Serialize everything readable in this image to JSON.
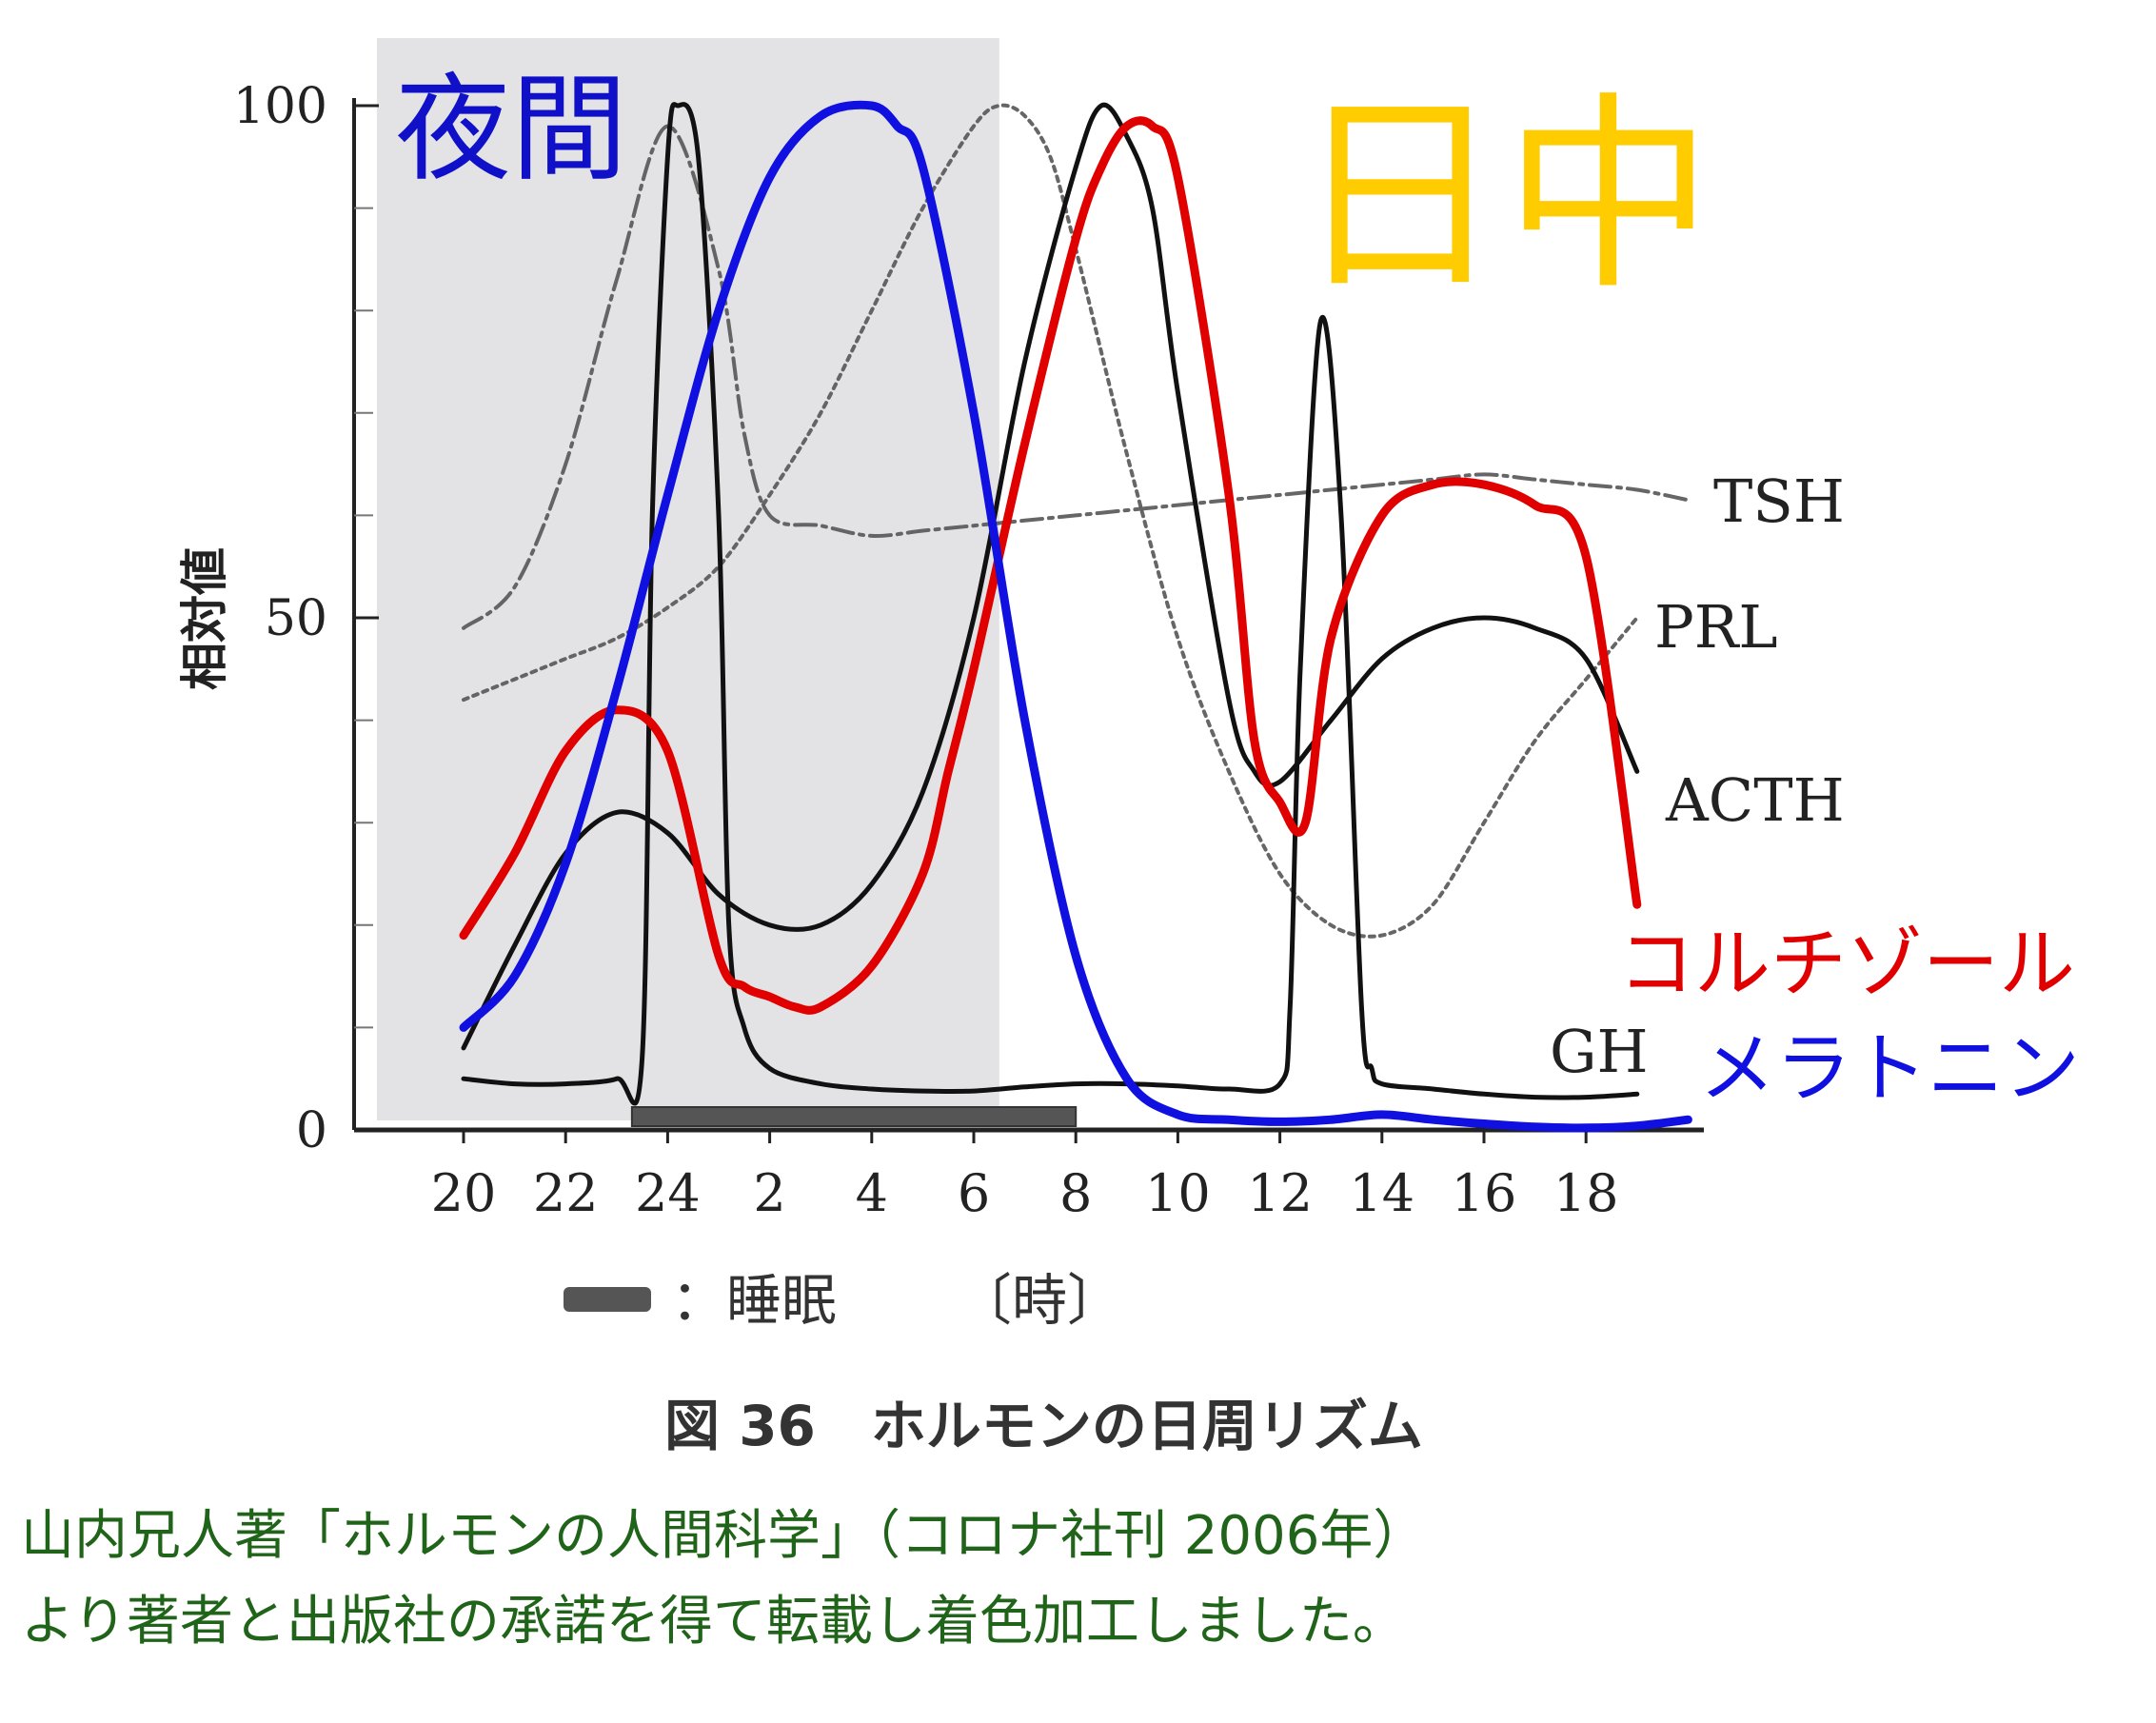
{
  "chart_data": {
    "type": "line",
    "title": "図 36　ホルモンの日周リズム",
    "ylabel": "相対値",
    "xlabel": "〔時〕",
    "ylim": [
      0,
      100
    ],
    "y_ticks": [
      0,
      50,
      100
    ],
    "x_range": [
      20,
      44
    ],
    "x_ticks": [
      {
        "value": 20,
        "label": "20"
      },
      {
        "value": 22,
        "label": "22"
      },
      {
        "value": 24,
        "label": "24"
      },
      {
        "value": 26,
        "label": "2"
      },
      {
        "value": 28,
        "label": "4"
      },
      {
        "value": 30,
        "label": "6"
      },
      {
        "value": 32,
        "label": "8"
      },
      {
        "value": 34,
        "label": "10"
      },
      {
        "value": 36,
        "label": "12"
      },
      {
        "value": 38,
        "label": "14"
      },
      {
        "value": 40,
        "label": "16"
      },
      {
        "value": 42,
        "label": "18"
      }
    ],
    "night_band": {
      "from": 18.3,
      "to": 30.5,
      "label": "夜間"
    },
    "daytime_label": "日中",
    "sleep": {
      "from": 23.3,
      "to": 32,
      "legend": "：睡眠"
    },
    "series": [
      {
        "name": "TSH",
        "style": "dashdot",
        "color": "#555555",
        "x": [
          20,
          21,
          22,
          23,
          24,
          25,
          25.5,
          26,
          27,
          28,
          29,
          30,
          31,
          32,
          33,
          34,
          35,
          36,
          37,
          38,
          39,
          40,
          41,
          42,
          43,
          44
        ],
        "values": [
          49,
          53,
          65,
          83,
          98,
          84,
          68,
          60,
          59,
          58,
          58.5,
          59,
          59.5,
          60,
          60.5,
          61,
          61.5,
          62,
          62.5,
          63,
          63.5,
          64,
          63.5,
          63,
          62.5,
          61.5
        ]
      },
      {
        "name": "PRL",
        "style": "dotted",
        "color": "#555555",
        "x": [
          20,
          21,
          22,
          23,
          24,
          25,
          26,
          27,
          28,
          29,
          30,
          30.5,
          31,
          31.5,
          32,
          33,
          34,
          35,
          36,
          37,
          38,
          39,
          40,
          41,
          42,
          43
        ],
        "values": [
          42,
          44,
          46,
          48,
          51,
          55,
          62,
          70,
          80,
          90,
          98,
          100,
          99,
          95,
          86,
          66,
          48,
          35,
          25,
          20,
          19,
          22,
          30,
          38,
          44,
          50
        ]
      },
      {
        "name": "ACTH",
        "style": "solid",
        "color": "#111111",
        "x": [
          20,
          21,
          22,
          23,
          24,
          25,
          26,
          27,
          28,
          29,
          30,
          31,
          32,
          32.5,
          33,
          33.5,
          34,
          35,
          35.5,
          36,
          37,
          38,
          39,
          40,
          41,
          42,
          43
        ],
        "values": [
          8,
          18,
          27,
          31,
          29,
          23,
          20,
          20,
          24,
          33,
          50,
          75,
          94,
          100,
          97,
          90,
          72,
          42,
          35,
          34,
          40,
          46,
          49,
          50,
          49,
          46,
          35
        ]
      },
      {
        "name": "GH",
        "style": "solid",
        "color": "#111111",
        "x": [
          20,
          21,
          22,
          23,
          23.5,
          23.7,
          24,
          24.2,
          24.6,
          25,
          25.2,
          25.5,
          26,
          27,
          28,
          29,
          30,
          31,
          32,
          33,
          34,
          35,
          36,
          36.2,
          36.4,
          36.8,
          37.2,
          37.6,
          37.8,
          38,
          39,
          40,
          41,
          42,
          43
        ],
        "values": [
          5,
          4.5,
          4.5,
          5,
          7,
          60,
          95,
          100,
          95,
          60,
          20,
          10,
          6,
          4.5,
          4,
          3.8,
          3.8,
          4.2,
          4.5,
          4.5,
          4.3,
          4,
          4.5,
          12,
          45,
          79,
          60,
          12,
          6,
          4.5,
          4,
          3.5,
          3.2,
          3.2,
          3.5
        ]
      },
      {
        "name": "コルチゾール",
        "style": "bold",
        "color": "#e00000",
        "x": [
          20,
          21,
          22,
          23,
          24,
          25,
          25.5,
          26,
          26.5,
          27,
          28,
          29,
          29.5,
          30,
          31,
          32,
          32.5,
          33,
          33.5,
          34,
          35,
          35.5,
          36,
          36.5,
          37,
          38,
          39,
          40,
          41,
          42,
          43
        ],
        "values": [
          19,
          27,
          37,
          41,
          37,
          17,
          14,
          13,
          12,
          12,
          16,
          25,
          35,
          45,
          67,
          87,
          94,
          98,
          98,
          93,
          62,
          38,
          32,
          30,
          48,
          60,
          63,
          63,
          61,
          56,
          22
        ]
      },
      {
        "name": "メラトニン",
        "style": "bold",
        "color": "#1010e0",
        "x": [
          20,
          21,
          22,
          23,
          24,
          25,
          26,
          27,
          28,
          28.5,
          29,
          30,
          31,
          32,
          33,
          34,
          35,
          36,
          37,
          38,
          39,
          40,
          41,
          42,
          43,
          44
        ],
        "values": [
          10,
          15,
          26,
          43,
          62,
          80,
          93,
          99,
          100,
          98,
          94,
          70,
          40,
          17,
          5,
          1.5,
          1,
          0.8,
          1,
          1.5,
          1,
          0.6,
          0.3,
          0.2,
          0.4,
          1
        ]
      }
    ],
    "annotations": [
      "TSH",
      "PRL",
      "ACTH",
      "GH",
      "コルチゾール",
      "メラトニン"
    ]
  },
  "credit": {
    "line1": "山内兄人著「ホルモンの人間科学」（コロナ社刊 2006年）",
    "line2": "より著者と出版社の承諾を得て転載し着色加工しました。"
  },
  "colors": {
    "credit": "#1f6418",
    "day_label": "#ffcc00",
    "night_label": "#1010c8",
    "night_band": "#e3e3e6"
  }
}
